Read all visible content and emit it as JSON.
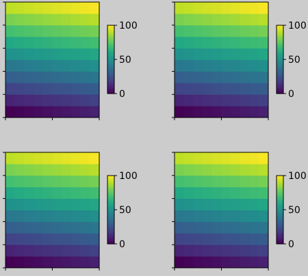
{
  "chart_data": [
    {
      "type": "heatmap",
      "panel": "top-left",
      "rows": 10,
      "cols": 10,
      "colormap": "viridis",
      "values": [
        [
          0,
          1,
          2,
          3,
          4,
          5,
          6,
          7,
          8,
          9
        ],
        [
          10,
          11,
          12,
          13,
          14,
          15,
          16,
          17,
          18,
          19
        ],
        [
          20,
          21,
          22,
          23,
          24,
          25,
          26,
          27,
          28,
          29
        ],
        [
          30,
          31,
          32,
          33,
          34,
          35,
          36,
          37,
          38,
          39
        ],
        [
          40,
          41,
          42,
          43,
          44,
          45,
          46,
          47,
          48,
          49
        ],
        [
          50,
          51,
          52,
          53,
          54,
          55,
          56,
          57,
          58,
          59
        ],
        [
          60,
          61,
          62,
          63,
          64,
          65,
          66,
          67,
          68,
          69
        ],
        [
          70,
          71,
          72,
          73,
          74,
          75,
          76,
          77,
          78,
          79
        ],
        [
          80,
          81,
          82,
          83,
          84,
          85,
          86,
          87,
          88,
          89
        ],
        [
          90,
          91,
          92,
          93,
          94,
          95,
          96,
          97,
          98,
          99
        ]
      ],
      "origin": "lower",
      "colorbar": {
        "range": [
          0,
          100
        ],
        "ticks": [
          0,
          50,
          100
        ],
        "tick_labels": [
          "0",
          "50",
          "100"
        ]
      }
    },
    {
      "type": "heatmap",
      "panel": "top-right",
      "rows": 10,
      "cols": 10,
      "colormap": "viridis",
      "values": [
        [
          0,
          1,
          2,
          3,
          4,
          5,
          6,
          7,
          8,
          9
        ],
        [
          10,
          11,
          12,
          13,
          14,
          15,
          16,
          17,
          18,
          19
        ],
        [
          20,
          21,
          22,
          23,
          24,
          25,
          26,
          27,
          28,
          29
        ],
        [
          30,
          31,
          32,
          33,
          34,
          35,
          36,
          37,
          38,
          39
        ],
        [
          40,
          41,
          42,
          43,
          44,
          45,
          46,
          47,
          48,
          49
        ],
        [
          50,
          51,
          52,
          53,
          54,
          55,
          56,
          57,
          58,
          59
        ],
        [
          60,
          61,
          62,
          63,
          64,
          65,
          66,
          67,
          68,
          69
        ],
        [
          70,
          71,
          72,
          73,
          74,
          75,
          76,
          77,
          78,
          79
        ],
        [
          80,
          81,
          82,
          83,
          84,
          85,
          86,
          87,
          88,
          89
        ],
        [
          90,
          91,
          92,
          93,
          94,
          95,
          96,
          97,
          98,
          99
        ]
      ],
      "origin": "lower",
      "colorbar": {
        "range": [
          0,
          100
        ],
        "ticks": [
          0,
          50,
          100
        ],
        "tick_labels": [
          "0",
          "50",
          "100"
        ]
      }
    },
    {
      "type": "heatmap",
      "panel": "bottom-left",
      "rows": 10,
      "cols": 10,
      "colormap": "viridis",
      "values": [
        [
          0,
          1,
          2,
          3,
          4,
          5,
          6,
          7,
          8,
          9
        ],
        [
          10,
          11,
          12,
          13,
          14,
          15,
          16,
          17,
          18,
          19
        ],
        [
          20,
          21,
          22,
          23,
          24,
          25,
          26,
          27,
          28,
          29
        ],
        [
          30,
          31,
          32,
          33,
          34,
          35,
          36,
          37,
          38,
          39
        ],
        [
          40,
          41,
          42,
          43,
          44,
          45,
          46,
          47,
          48,
          49
        ],
        [
          50,
          51,
          52,
          53,
          54,
          55,
          56,
          57,
          58,
          59
        ],
        [
          60,
          61,
          62,
          63,
          64,
          65,
          66,
          67,
          68,
          69
        ],
        [
          70,
          71,
          72,
          73,
          74,
          75,
          76,
          77,
          78,
          79
        ],
        [
          80,
          81,
          82,
          83,
          84,
          85,
          86,
          87,
          88,
          89
        ],
        [
          90,
          91,
          92,
          93,
          94,
          95,
          96,
          97,
          98,
          99
        ]
      ],
      "origin": "lower",
      "colorbar": {
        "range": [
          0,
          100
        ],
        "ticks": [
          0,
          50,
          100
        ],
        "tick_labels": [
          "0",
          "50",
          "100"
        ]
      }
    },
    {
      "type": "heatmap",
      "panel": "bottom-right",
      "rows": 10,
      "cols": 10,
      "colormap": "viridis",
      "values": [
        [
          0,
          1,
          2,
          3,
          4,
          5,
          6,
          7,
          8,
          9
        ],
        [
          10,
          11,
          12,
          13,
          14,
          15,
          16,
          17,
          18,
          19
        ],
        [
          20,
          21,
          22,
          23,
          24,
          25,
          26,
          27,
          28,
          29
        ],
        [
          30,
          31,
          32,
          33,
          34,
          35,
          36,
          37,
          38,
          39
        ],
        [
          40,
          41,
          42,
          43,
          44,
          45,
          46,
          47,
          48,
          49
        ],
        [
          50,
          51,
          52,
          53,
          54,
          55,
          56,
          57,
          58,
          59
        ],
        [
          60,
          61,
          62,
          63,
          64,
          65,
          66,
          67,
          68,
          69
        ],
        [
          70,
          71,
          72,
          73,
          74,
          75,
          76,
          77,
          78,
          79
        ],
        [
          80,
          81,
          82,
          83,
          84,
          85,
          86,
          87,
          88,
          89
        ],
        [
          90,
          91,
          92,
          93,
          94,
          95,
          96,
          97,
          98,
          99
        ]
      ],
      "origin": "lower",
      "colorbar": {
        "range": [
          0,
          100
        ],
        "ticks": [
          0,
          50,
          100
        ],
        "tick_labels": [
          "0",
          "50",
          "100"
        ]
      }
    }
  ],
  "colors": {
    "background": "#cccccc",
    "axis": "#000000",
    "text": "#000000"
  }
}
